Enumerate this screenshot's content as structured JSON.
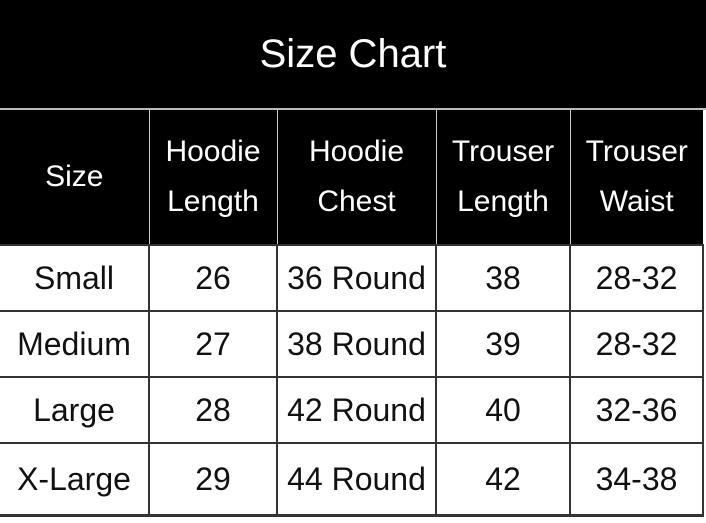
{
  "title": "Size Chart",
  "headers": [
    [
      "Size"
    ],
    [
      "Hoodie",
      "Length"
    ],
    [
      "Hoodie",
      "Chest"
    ],
    [
      "Trouser",
      "Length"
    ],
    [
      "Trouser",
      "Waist"
    ]
  ],
  "rows": [
    [
      "Small",
      "26",
      "36 Round",
      "38",
      "28-32"
    ],
    [
      "Medium",
      "27",
      "38 Round",
      "39",
      "28-32"
    ],
    [
      "Large",
      "28",
      "42 Round",
      "40",
      "32-36"
    ],
    [
      "X-Large",
      "29",
      "44 Round",
      "42",
      "34-38"
    ]
  ]
}
